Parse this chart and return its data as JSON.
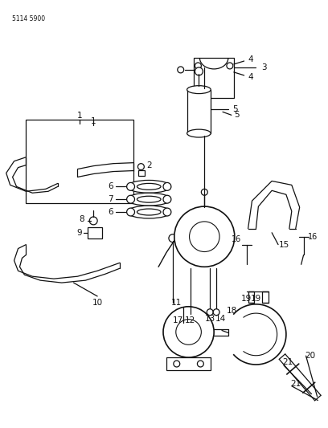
{
  "background_color": "#ffffff",
  "part_number_label": "5114 5900",
  "line_color": "#111111",
  "label_color": "#111111",
  "fig_width": 4.08,
  "fig_height": 5.33,
  "dpi": 100
}
